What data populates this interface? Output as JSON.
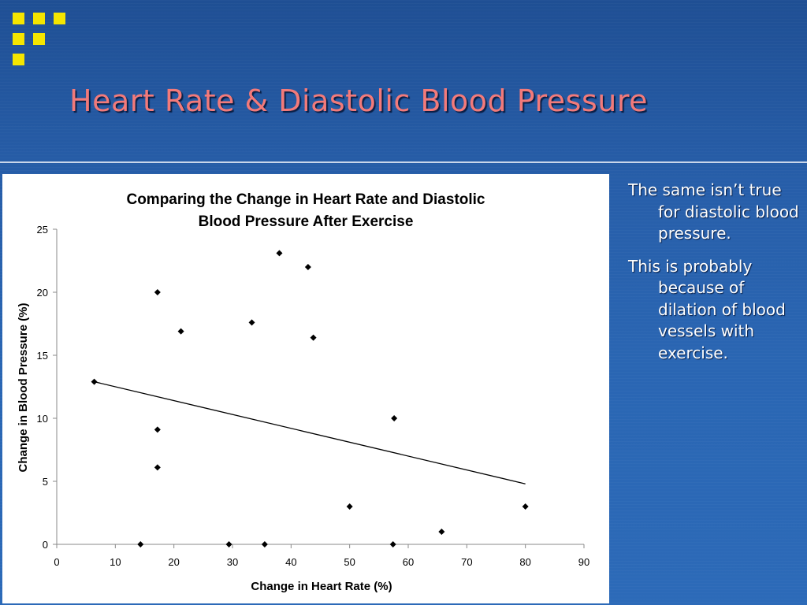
{
  "slide": {
    "title": "Heart Rate & Diastolic Blood Pressure",
    "bullets": [
      "The same isn’t true for diastolic blood pressure.",
      "This is probably because of dilation of blood vessels with exercise."
    ]
  },
  "colors": {
    "background": "#2a63ae",
    "title": "#f27a7a",
    "logo_squares": "#f5e600",
    "chart_background": "#ffffff",
    "points": "#000000"
  },
  "chart_data": {
    "type": "scatter",
    "title": "Comparing the Change in Heart Rate and Diastolic Blood Pressure After Exercise",
    "title_lines": [
      "Comparing the Change in Heart Rate and Diastolic",
      "Blood Pressure After Exercise"
    ],
    "xlabel": "Change in Heart Rate (%)",
    "ylabel": "Change in Blood Pressure (%)",
    "xlim": [
      0,
      90
    ],
    "ylim": [
      0,
      25
    ],
    "xticks": [
      0,
      10,
      20,
      30,
      40,
      50,
      60,
      70,
      80,
      90
    ],
    "yticks": [
      0,
      5,
      10,
      15,
      20,
      25
    ],
    "grid": false,
    "legend": "none",
    "points": [
      {
        "x": 6.4,
        "y": 12.9
      },
      {
        "x": 14.3,
        "y": 0
      },
      {
        "x": 17.2,
        "y": 20
      },
      {
        "x": 17.2,
        "y": 9.1
      },
      {
        "x": 17.2,
        "y": 6.1
      },
      {
        "x": 21.2,
        "y": 16.9
      },
      {
        "x": 29.4,
        "y": 0
      },
      {
        "x": 33.3,
        "y": 17.6
      },
      {
        "x": 35.5,
        "y": 0
      },
      {
        "x": 38.0,
        "y": 23.1
      },
      {
        "x": 42.9,
        "y": 22.0
      },
      {
        "x": 43.8,
        "y": 16.4
      },
      {
        "x": 50.0,
        "y": 3.0
      },
      {
        "x": 57.4,
        "y": 0
      },
      {
        "x": 57.6,
        "y": 10.0
      },
      {
        "x": 65.7,
        "y": 1.0
      },
      {
        "x": 80.0,
        "y": 3.0
      }
    ],
    "trendline": {
      "type": "linear",
      "x": [
        6.4,
        80.0
      ],
      "y": [
        12.9,
        4.8
      ]
    }
  }
}
